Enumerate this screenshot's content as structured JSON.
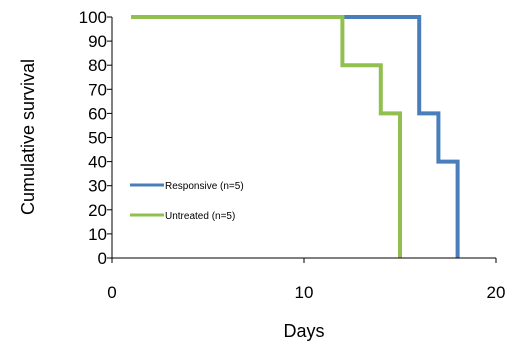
{
  "chart_data": {
    "type": "line",
    "title": "",
    "xlabel": "Days",
    "ylabel": "Cumulative survival",
    "xlim": [
      0,
      20
    ],
    "ylim": [
      0,
      100
    ],
    "x_ticks": [
      0,
      10,
      20
    ],
    "y_ticks": [
      0,
      10,
      20,
      30,
      40,
      50,
      60,
      70,
      80,
      90,
      100
    ],
    "grid": false,
    "legend_position": "center-left",
    "series": [
      {
        "name": "Responsive (n=5)",
        "color": "#4a7ebb",
        "step": true,
        "points": [
          [
            1,
            100
          ],
          [
            16,
            100
          ],
          [
            16,
            60
          ],
          [
            17,
            60
          ],
          [
            17,
            40
          ],
          [
            18,
            40
          ],
          [
            18,
            0
          ]
        ]
      },
      {
        "name": "Untreated (n=5)",
        "color": "#92c050",
        "step": true,
        "points": [
          [
            1,
            100
          ],
          [
            12,
            100
          ],
          [
            12,
            80
          ],
          [
            14,
            80
          ],
          [
            14,
            60
          ],
          [
            15,
            60
          ],
          [
            15,
            0
          ]
        ]
      }
    ]
  }
}
